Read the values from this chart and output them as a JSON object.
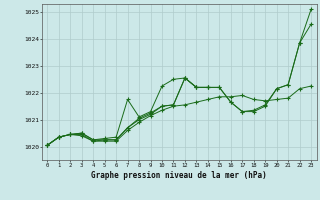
{
  "title": "Graphe pression niveau de la mer (hPa)",
  "xlabel_hours": [
    0,
    1,
    2,
    3,
    4,
    5,
    6,
    7,
    8,
    9,
    10,
    11,
    12,
    13,
    14,
    15,
    16,
    17,
    18,
    19,
    20,
    21,
    22,
    23
  ],
  "ylim": [
    1019.5,
    1025.3
  ],
  "yticks": [
    1020,
    1021,
    1022,
    1023,
    1024,
    1025
  ],
  "background_color": "#cce8e8",
  "grid_color": "#b0cccc",
  "line_color": "#1a6b1a",
  "series": [
    [
      1020.05,
      1020.35,
      1020.45,
      1020.45,
      1020.2,
      1020.25,
      1020.25,
      1020.7,
      1021.0,
      1021.2,
      1021.5,
      1021.55,
      1022.55,
      1022.2,
      1022.2,
      1022.2,
      1021.65,
      1021.3,
      1021.3,
      1021.5,
      1022.15,
      1022.3,
      1023.85,
      1024.55
    ],
    [
      1020.05,
      1020.35,
      1020.45,
      1020.5,
      1020.25,
      1020.3,
      1020.35,
      1021.75,
      1021.1,
      1021.3,
      1022.25,
      1022.5,
      1022.55,
      1022.2,
      1022.2,
      null,
      null,
      null,
      null,
      null,
      null,
      null,
      null,
      null
    ],
    [
      1020.05,
      1020.35,
      1020.45,
      1020.5,
      1020.25,
      1020.25,
      1020.25,
      1020.7,
      1021.05,
      1021.25,
      1021.5,
      1021.55,
      1022.55,
      1022.2,
      1022.2,
      1022.2,
      1021.65,
      1021.3,
      1021.35,
      1021.55,
      1022.15,
      1022.3,
      1023.85,
      1025.1
    ],
    [
      1020.05,
      1020.35,
      1020.45,
      1020.4,
      1020.2,
      1020.2,
      1020.2,
      1020.6,
      1020.9,
      1021.15,
      1021.35,
      1021.5,
      1021.55,
      1021.65,
      1021.75,
      1021.85,
      1021.85,
      1021.9,
      1021.75,
      1021.7,
      1021.75,
      1021.8,
      1022.15,
      1022.25
    ]
  ]
}
